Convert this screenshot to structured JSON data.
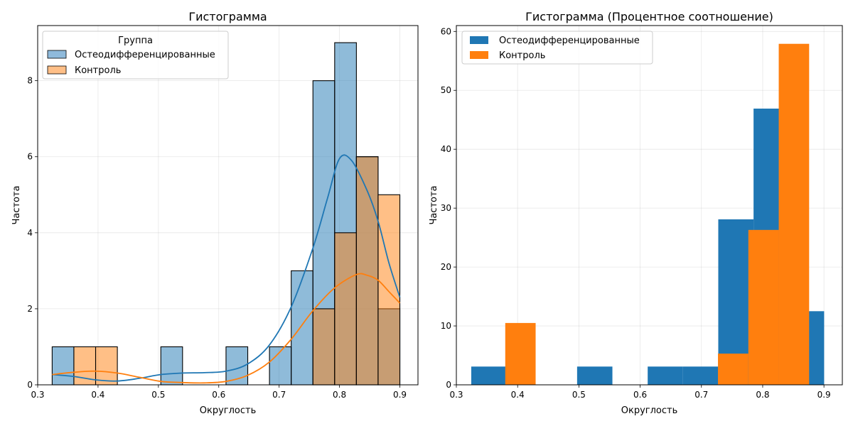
{
  "chart_data": [
    {
      "type": "bar",
      "title": "Гистограмма",
      "xlabel": "Округлость",
      "ylabel": "Частота",
      "xlim": [
        0.3,
        0.93
      ],
      "ylim": [
        0,
        9.45
      ],
      "xticks": [
        "0.3",
        "0.4",
        "0.5",
        "0.6",
        "0.7",
        "0.8",
        "0.9"
      ],
      "yticks": [
        "0",
        "2",
        "4",
        "6",
        "8"
      ],
      "grid": true,
      "legend": {
        "title": "Группа",
        "placement": "top-left"
      },
      "bin_edges": [
        0.324,
        0.36,
        0.396,
        0.432,
        0.468,
        0.504,
        0.54,
        0.576,
        0.612,
        0.648,
        0.684,
        0.72,
        0.756,
        0.792,
        0.828,
        0.864,
        0.9
      ],
      "series": [
        {
          "name": "Остеодифференцированные",
          "color": "#1f77b4",
          "counts": [
            1,
            0,
            0,
            0,
            0,
            1,
            0,
            0,
            1,
            0,
            1,
            3,
            8,
            9,
            6,
            2
          ],
          "kde": [
            [
              0.324,
              0.27
            ],
            [
              0.36,
              0.22
            ],
            [
              0.396,
              0.13
            ],
            [
              0.432,
              0.1
            ],
            [
              0.468,
              0.17
            ],
            [
              0.504,
              0.27
            ],
            [
              0.54,
              0.31
            ],
            [
              0.576,
              0.32
            ],
            [
              0.612,
              0.36
            ],
            [
              0.648,
              0.55
            ],
            [
              0.684,
              1.05
            ],
            [
              0.72,
              2.05
            ],
            [
              0.756,
              3.6
            ],
            [
              0.78,
              4.9
            ],
            [
              0.8,
              5.95
            ],
            [
              0.82,
              5.9
            ],
            [
              0.846,
              5.1
            ],
            [
              0.864,
              4.3
            ],
            [
              0.882,
              3.2
            ],
            [
              0.9,
              2.3
            ]
          ]
        },
        {
          "name": "Контроль",
          "color": "#ff7f0e",
          "counts": [
            0,
            1,
            1,
            0,
            0,
            0,
            0,
            0,
            0,
            0,
            0,
            0,
            2,
            4,
            6,
            5
          ],
          "kde": [
            [
              0.324,
              0.27
            ],
            [
              0.36,
              0.33
            ],
            [
              0.396,
              0.36
            ],
            [
              0.432,
              0.31
            ],
            [
              0.468,
              0.2
            ],
            [
              0.504,
              0.09
            ],
            [
              0.54,
              0.06
            ],
            [
              0.576,
              0.05
            ],
            [
              0.612,
              0.09
            ],
            [
              0.648,
              0.25
            ],
            [
              0.684,
              0.6
            ],
            [
              0.72,
              1.2
            ],
            [
              0.756,
              1.95
            ],
            [
              0.792,
              2.55
            ],
            [
              0.828,
              2.9
            ],
            [
              0.846,
              2.88
            ],
            [
              0.864,
              2.75
            ],
            [
              0.882,
              2.45
            ],
            [
              0.9,
              2.15
            ]
          ]
        }
      ]
    },
    {
      "type": "bar",
      "title": "Гистограмма (Процентное соотношение)",
      "xlabel": "Округлость",
      "ylabel": "Частота",
      "xlim": [
        0.3,
        0.93
      ],
      "ylim": [
        0,
        61
      ],
      "xticks": [
        "0.3",
        "0.4",
        "0.5",
        "0.6",
        "0.7",
        "0.8",
        "0.9"
      ],
      "yticks": [
        "0",
        "10",
        "20",
        "30",
        "40",
        "50",
        "60"
      ],
      "grid": true,
      "legend": {
        "placement": "top-left"
      },
      "series": [
        {
          "name": "Остеодифференцированные",
          "color": "#1f77b4",
          "bins": [
            {
              "x0": 0.3243,
              "x1": 0.3819,
              "value": 3.1
            },
            {
              "x0": 0.3819,
              "x1": 0.4395,
              "value": 0
            },
            {
              "x0": 0.4395,
              "x1": 0.4971,
              "value": 0
            },
            {
              "x0": 0.4971,
              "x1": 0.5547,
              "value": 3.1
            },
            {
              "x0": 0.5547,
              "x1": 0.6123,
              "value": 0
            },
            {
              "x0": 0.6123,
              "x1": 0.6699,
              "value": 3.1
            },
            {
              "x0": 0.6699,
              "x1": 0.7275,
              "value": 3.1
            },
            {
              "x0": 0.7275,
              "x1": 0.7851,
              "value": 28.1
            },
            {
              "x0": 0.7851,
              "x1": 0.8427,
              "value": 46.9
            },
            {
              "x0": 0.8427,
              "x1": 0.9003,
              "value": 12.5
            }
          ]
        },
        {
          "name": "Контроль",
          "color": "#ff7f0e",
          "bins": [
            {
              "x0": 0.3798,
              "x1": 0.4294,
              "value": 10.5
            },
            {
              "x0": 0.4294,
              "x1": 0.479,
              "value": 0
            },
            {
              "x0": 0.479,
              "x1": 0.5286,
              "value": 0
            },
            {
              "x0": 0.5286,
              "x1": 0.5782,
              "value": 0
            },
            {
              "x0": 0.5782,
              "x1": 0.6278,
              "value": 0
            },
            {
              "x0": 0.6278,
              "x1": 0.6774,
              "value": 0
            },
            {
              "x0": 0.6774,
              "x1": 0.727,
              "value": 0
            },
            {
              "x0": 0.727,
              "x1": 0.7766,
              "value": 5.3
            },
            {
              "x0": 0.7766,
              "x1": 0.8262,
              "value": 26.3
            },
            {
              "x0": 0.8262,
              "x1": 0.8758,
              "value": 57.9
            }
          ]
        }
      ]
    }
  ]
}
